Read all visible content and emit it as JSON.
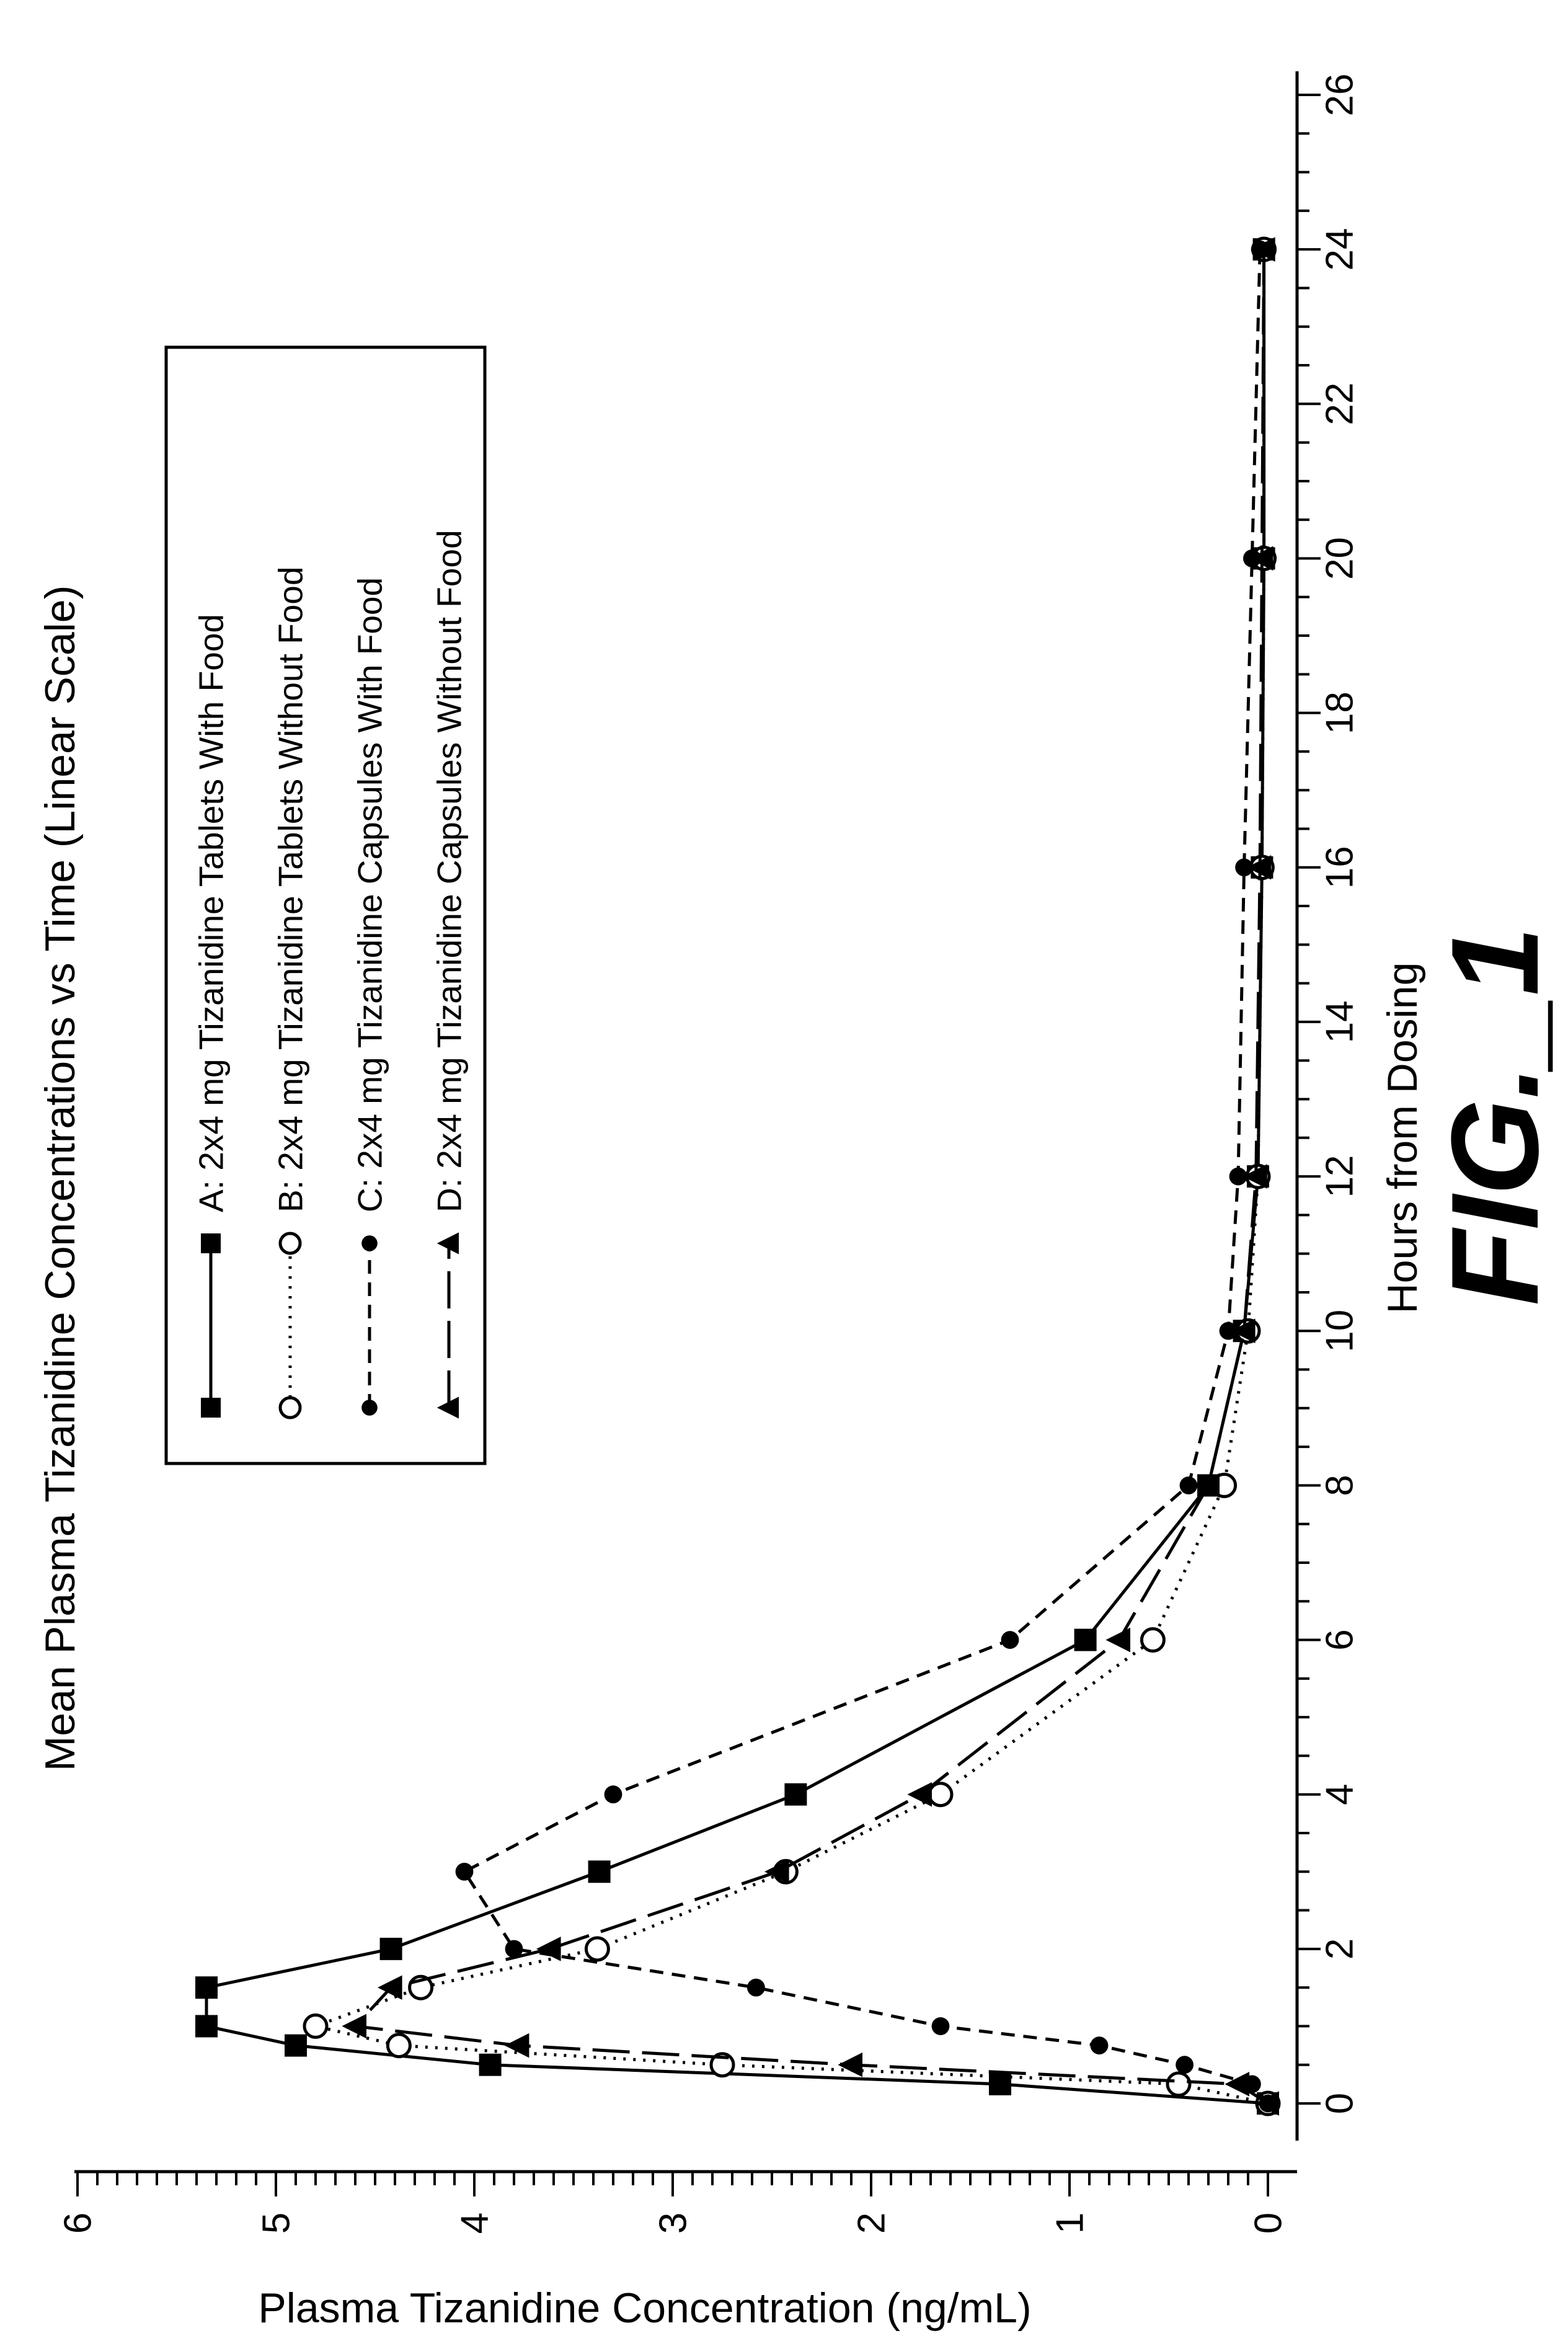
{
  "chart_data": {
    "type": "line",
    "title": "Mean Plasma Tizanidine Concentrations vs Time (Linear Scale)",
    "xlabel": "Hours from Dosing",
    "ylabel": "Plasma Tizanidine Concentration (ng/mL)",
    "xlim": [
      0,
      26
    ],
    "ylim": [
      0,
      6
    ],
    "x_ticks": [
      "0",
      "2",
      "4",
      "6",
      "8",
      "10",
      "12",
      "14",
      "16",
      "18",
      "20",
      "22",
      "24",
      "26"
    ],
    "y_ticks": [
      "0",
      "1",
      "2",
      "3",
      "4",
      "5",
      "6"
    ],
    "orientation": "rotated 90 degrees counter-clockwise",
    "legend_position": "top-left",
    "series": [
      {
        "name": "A: 2x4 mg Tizanidine Tablets With Food",
        "marker": "filled square",
        "line": "solid",
        "x": [
          0,
          0.25,
          0.5,
          0.75,
          1,
          1.5,
          2,
          3,
          4,
          6,
          8,
          10,
          12,
          16,
          20,
          24
        ],
        "y": [
          0,
          1.35,
          3.92,
          4.9,
          5.35,
          5.35,
          4.42,
          3.37,
          2.38,
          0.92,
          0.3,
          0.12,
          0.05,
          0.03,
          0.02,
          0.02
        ]
      },
      {
        "name": "B: 2x4 mg Tizanidine Tablets Without Food",
        "marker": "open circle",
        "line": "dotted",
        "x": [
          0,
          0.25,
          0.5,
          0.75,
          1,
          1.5,
          2,
          3,
          4,
          6,
          8,
          10,
          12,
          16,
          20,
          24
        ],
        "y": [
          0,
          0.45,
          2.75,
          4.38,
          4.8,
          4.27,
          3.38,
          2.43,
          1.65,
          0.58,
          0.22,
          0.1,
          0.05,
          0.03,
          0.02,
          0.02
        ]
      },
      {
        "name": "C: 2x4 mg Tizanidine Capsules With Food",
        "marker": "filled circle",
        "line": "short dashed",
        "x": [
          0,
          0.25,
          0.5,
          0.75,
          1,
          1.5,
          2,
          3,
          4,
          6,
          8,
          10,
          12,
          16,
          20,
          24
        ],
        "y": [
          0,
          0.08,
          0.42,
          0.85,
          1.65,
          2.58,
          3.8,
          4.05,
          3.3,
          1.3,
          0.4,
          0.2,
          0.15,
          0.12,
          0.08,
          0.04
        ]
      },
      {
        "name": "D: 2x4 mg Tizanidine Capsules Without Food",
        "marker": "filled triangle",
        "line": "long dashed",
        "x": [
          0,
          0.25,
          0.5,
          0.75,
          1,
          1.5,
          2,
          3,
          4,
          6,
          8,
          10,
          12,
          16,
          20,
          24
        ],
        "y": [
          0,
          0.15,
          2.1,
          3.78,
          4.6,
          4.42,
          3.62,
          2.47,
          1.75,
          0.75,
          0.3,
          0.12,
          0.06,
          0.04,
          0.03,
          0.02
        ]
      }
    ]
  },
  "figure_label": "FIG._1"
}
